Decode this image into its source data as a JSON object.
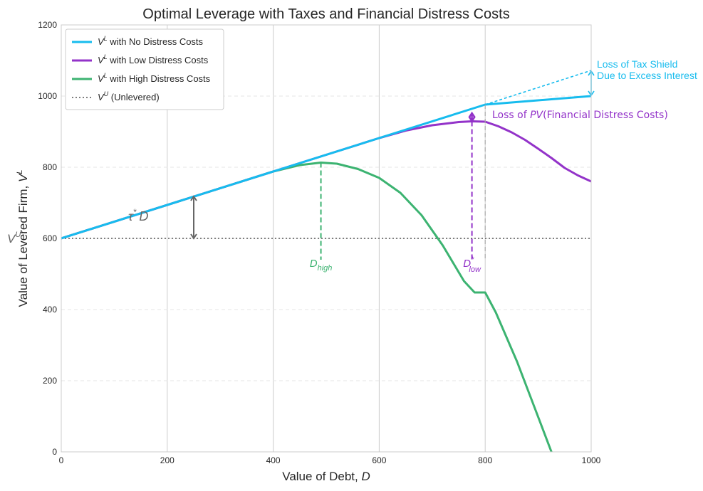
{
  "chart_data": {
    "type": "line",
    "title": "Optimal Leverage with Taxes and Financial Distress Costs",
    "xlabel": "Value of Debt, D",
    "ylabel": "Value of Levered Firm, V",
    "ylabel_sup": "L",
    "xlim": [
      0,
      1000
    ],
    "ylim": [
      0,
      1200
    ],
    "x_ticks": [
      "0",
      "200",
      "400",
      "600",
      "800",
      "1000"
    ],
    "y_ticks": [
      "0",
      "200",
      "400",
      "600",
      "800",
      "1000",
      "1200"
    ],
    "grid": true,
    "legend_position": "top-left",
    "series": [
      {
        "name": "with No Distress Costs",
        "color": "#17bcee",
        "style": "solid",
        "points": [
          [
            0,
            600
          ],
          [
            800,
            976
          ],
          [
            1000,
            1000
          ]
        ]
      },
      {
        "name": "with Low Distress Costs",
        "color": "#9333c9",
        "style": "solid",
        "points": [
          [
            0,
            600
          ],
          [
            400,
            788
          ],
          [
            500,
            835
          ],
          [
            600,
            882
          ],
          [
            650,
            903
          ],
          [
            700,
            918
          ],
          [
            750,
            927
          ],
          [
            775,
            929
          ],
          [
            800,
            928
          ],
          [
            825,
            915
          ],
          [
            850,
            898
          ],
          [
            875,
            877
          ],
          [
            900,
            852
          ],
          [
            925,
            826
          ],
          [
            950,
            798
          ],
          [
            975,
            777
          ],
          [
            1000,
            760
          ]
        ]
      },
      {
        "name": "with High Distress Costs",
        "color": "#3cb371",
        "style": "solid",
        "points": [
          [
            0,
            600
          ],
          [
            100,
            647
          ],
          [
            200,
            694
          ],
          [
            300,
            741
          ],
          [
            400,
            788
          ],
          [
            450,
            806
          ],
          [
            490,
            813
          ],
          [
            520,
            810
          ],
          [
            560,
            795
          ],
          [
            600,
            770
          ],
          [
            640,
            728
          ],
          [
            680,
            665
          ],
          [
            720,
            580
          ],
          [
            760,
            480
          ],
          [
            780,
            448
          ],
          [
            800,
            448
          ],
          [
            820,
            392
          ],
          [
            860,
            254
          ],
          [
            900,
            98
          ],
          [
            925,
            0
          ]
        ]
      },
      {
        "name": "(Unlevered)",
        "color": "#555555",
        "style": "dotted",
        "points": [
          [
            0,
            600
          ],
          [
            1000,
            600
          ]
        ]
      }
    ],
    "legend": [
      {
        "sym": "V",
        "sup": "L",
        "text": " with No Distress Costs",
        "color": "#17bcee",
        "style": "solid"
      },
      {
        "sym": "V",
        "sup": "L",
        "text": " with Low Distress Costs",
        "color": "#9333c9",
        "style": "solid"
      },
      {
        "sym": "V",
        "sup": "L",
        "text": " with High Distress Costs",
        "color": "#3cb371",
        "style": "solid"
      },
      {
        "sym": "V",
        "sup": "U",
        "text": " (Unlevered)",
        "color": "#555555",
        "style": "dotted"
      }
    ],
    "annotations": {
      "tax_shield_line": {
        "from": [
          800,
          976
        ],
        "to": [
          1000,
          1072
        ],
        "color": "#17bcee"
      },
      "tax_shield_arrow": {
        "x": 1000,
        "y1": 1070,
        "y2": 1002,
        "color": "#17bcee"
      },
      "tax_shield_text_1": "Loss of Tax Shield",
      "tax_shield_text_2": "Due to Excess Interest",
      "distress_arrow": {
        "x": 775,
        "y1": 952,
        "y2": 930,
        "color": "#9333c9"
      },
      "distress_text_prefix": "Loss of ",
      "distress_text_italic": "PV",
      "distress_text_suffix": "(Financial Distress Costs)",
      "d_high": {
        "x": 490,
        "y_top": 813,
        "y_bottom": 540,
        "label": "D",
        "sub": "high",
        "color": "#3cb371"
      },
      "d_low": {
        "x": 775,
        "y_top": 929,
        "y_bottom": 540,
        "label": "D",
        "sub": "low",
        "star": "*",
        "color": "#9333c9"
      },
      "d_800": {
        "x": 800,
        "y_top": 976,
        "y_bottom": 540,
        "color": "#999999"
      },
      "tau_arrow": {
        "x": 250,
        "y1": 600,
        "y2": 718,
        "color": "#666666"
      },
      "tau_text": "τ",
      "tau_star": "*",
      "tau_d": "D",
      "vu_label": "V",
      "vu_sup": "U"
    }
  }
}
